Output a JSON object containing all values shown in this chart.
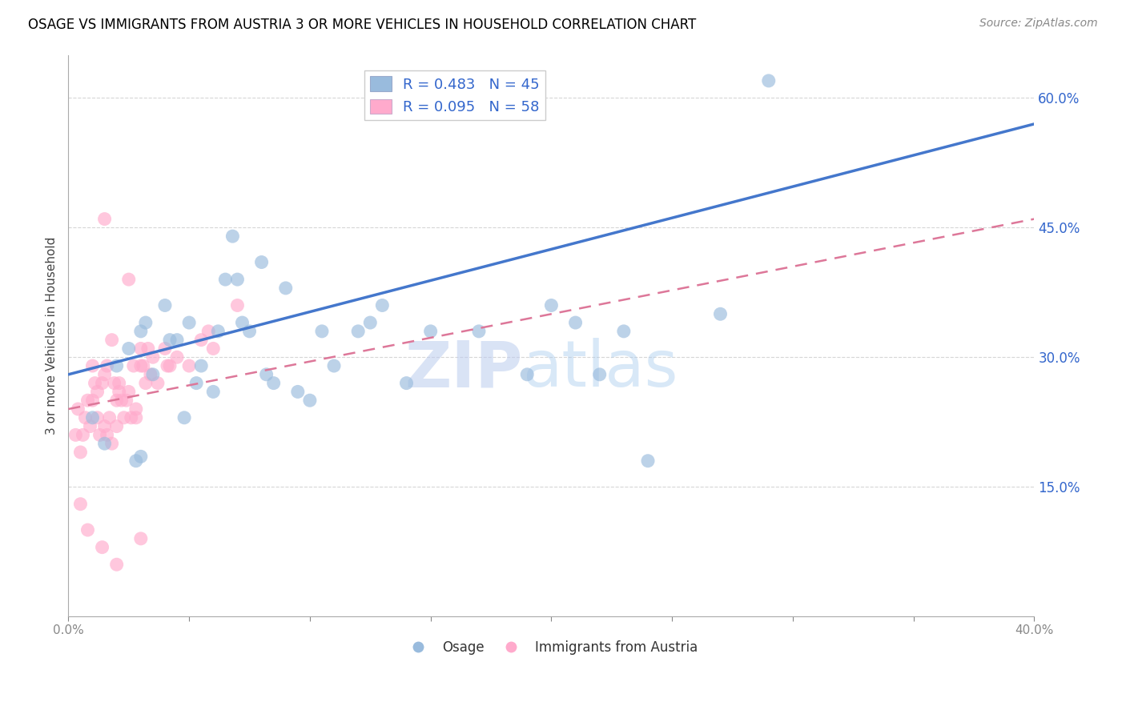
{
  "title": "OSAGE VS IMMIGRANTS FROM AUSTRIA 3 OR MORE VEHICLES IN HOUSEHOLD CORRELATION CHART",
  "source": "Source: ZipAtlas.com",
  "ylabel": "3 or more Vehicles in Household",
  "x_tick_labels_ends": [
    "0.0%",
    "40.0%"
  ],
  "y_tick_labels": [
    "15.0%",
    "30.0%",
    "45.0%",
    "60.0%"
  ],
  "y_tick_values": [
    15.0,
    30.0,
    45.0,
    60.0
  ],
  "xlim": [
    0.0,
    40.0
  ],
  "ylim": [
    0.0,
    65.0
  ],
  "legend_label1": "R = 0.483   N = 45",
  "legend_label2": "R = 0.095   N = 58",
  "legend_bottom_label1": "Osage",
  "legend_bottom_label2": "Immigrants from Austria",
  "color_blue": "#99BBDD",
  "color_pink": "#FFAACC",
  "color_blue_line": "#4477CC",
  "color_pink_line": "#DD7799",
  "watermark_zip": "ZIP",
  "watermark_atlas": "atlas",
  "blue_line_x0": 0.0,
  "blue_line_y0": 28.0,
  "blue_line_x1": 40.0,
  "blue_line_y1": 57.0,
  "pink_line_x0": 0.0,
  "pink_line_y0": 24.0,
  "pink_line_x1": 40.0,
  "pink_line_y1": 46.0,
  "osage_x": [
    1.0,
    1.5,
    2.0,
    2.5,
    3.0,
    3.5,
    4.0,
    4.5,
    5.0,
    5.5,
    6.0,
    6.5,
    7.0,
    7.5,
    8.0,
    9.0,
    10.0,
    11.0,
    12.0,
    13.0,
    14.0,
    15.0,
    17.0,
    19.0,
    20.0,
    3.2,
    4.2,
    5.3,
    6.2,
    7.2,
    8.5,
    9.5,
    10.5,
    12.5,
    2.8,
    4.8,
    21.0,
    22.0,
    27.0,
    23.0,
    24.0,
    3.0,
    6.8,
    8.2,
    29.0
  ],
  "osage_y": [
    23.0,
    20.0,
    29.0,
    31.0,
    33.0,
    28.0,
    36.0,
    32.0,
    34.0,
    29.0,
    26.0,
    39.0,
    39.0,
    33.0,
    41.0,
    38.0,
    25.0,
    29.0,
    33.0,
    36.0,
    27.0,
    33.0,
    33.0,
    28.0,
    36.0,
    34.0,
    32.0,
    27.0,
    33.0,
    34.0,
    27.0,
    26.0,
    33.0,
    34.0,
    18.0,
    23.0,
    34.0,
    28.0,
    35.0,
    33.0,
    18.0,
    18.5,
    44.0,
    28.0,
    62.0
  ],
  "austria_x": [
    0.3,
    0.5,
    0.7,
    0.8,
    1.0,
    1.0,
    1.1,
    1.2,
    1.3,
    1.4,
    1.5,
    1.5,
    1.6,
    1.7,
    1.8,
    1.8,
    1.9,
    2.0,
    2.0,
    2.1,
    2.2,
    2.3,
    2.4,
    2.5,
    2.6,
    2.7,
    2.8,
    3.0,
    3.0,
    3.1,
    3.2,
    3.3,
    3.5,
    3.7,
    4.0,
    4.2,
    4.5,
    5.0,
    5.5,
    6.0,
    0.4,
    0.6,
    0.9,
    1.2,
    1.6,
    2.1,
    2.8,
    3.4,
    4.1,
    5.8,
    0.5,
    0.8,
    1.4,
    2.0,
    3.0,
    1.5,
    2.5,
    7.0
  ],
  "austria_y": [
    21.0,
    19.0,
    23.0,
    25.0,
    25.0,
    29.0,
    27.0,
    23.0,
    21.0,
    27.0,
    28.0,
    22.0,
    21.0,
    23.0,
    20.0,
    32.0,
    27.0,
    25.0,
    22.0,
    27.0,
    25.0,
    23.0,
    25.0,
    26.0,
    23.0,
    29.0,
    23.0,
    31.0,
    29.0,
    29.0,
    27.0,
    31.0,
    30.0,
    27.0,
    31.0,
    29.0,
    30.0,
    29.0,
    32.0,
    31.0,
    24.0,
    21.0,
    22.0,
    26.0,
    29.0,
    26.0,
    24.0,
    28.0,
    29.0,
    33.0,
    13.0,
    10.0,
    8.0,
    6.0,
    9.0,
    46.0,
    39.0,
    36.0
  ]
}
